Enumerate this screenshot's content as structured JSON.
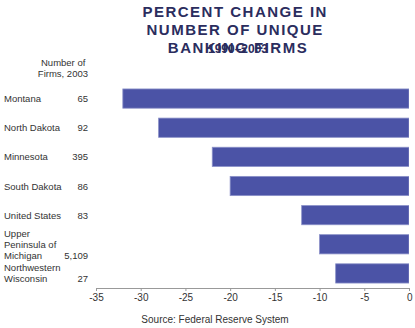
{
  "chart_data": {
    "type": "bar",
    "orientation": "horizontal",
    "title": "PERCENT CHANGE IN NUMBER OF UNIQUE BANKING FIRMS",
    "subtitle": "1990–2003",
    "annotations": [
      "Number of Firms, 2003"
    ],
    "source": "Source: Federal Reserve System",
    "categories": [
      "Montana",
      "North Dakota",
      "Minnesota",
      "South Dakota",
      "United States",
      "Upper Peninsula of Michigan",
      "Northwestern Wisconsin"
    ],
    "values": [
      -32,
      -28,
      -22,
      -20,
      -12,
      -10,
      -8.2
    ],
    "firm_counts": [
      65,
      92,
      395,
      86,
      83,
      {
        "value": 5109,
        "label": "5,109"
      },
      27
    ],
    "color": "#4b53a6",
    "xlim": [
      -35,
      0
    ],
    "xticks": [
      -35,
      -30,
      -25,
      -20,
      -15,
      -10,
      -5,
      0
    ],
    "grid": false
  }
}
